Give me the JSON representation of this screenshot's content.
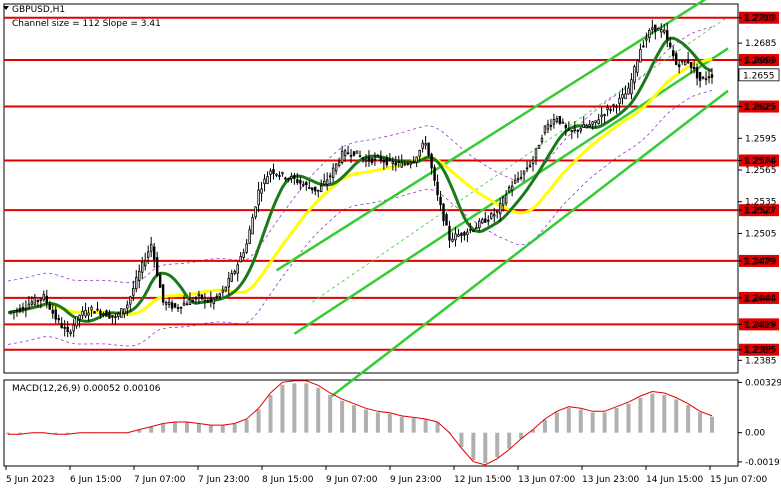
{
  "header": {
    "symbol_label": "GBPUSD,H1",
    "channel_label": "Channel size = 112  Slope = 3.41"
  },
  "colors": {
    "level_line": "#e00000",
    "level_tag_bg": "#e00000",
    "channel": "#33cc33",
    "ma_fast": "#1a7a1a",
    "ma_slow": "#ffff00",
    "envelope": "#9933cc",
    "candle": "#000000",
    "macd_hist": "#b0b0b0",
    "macd_signal": "#e00000"
  },
  "chart_data": {
    "type": "candlestick",
    "price_axis": {
      "ylim": [
        1.2373,
        1.2722
      ],
      "ticks": [
        "1.2709",
        "1.2685",
        "1.2669",
        "1.2655",
        "1.2625",
        "1.2595",
        "1.2574",
        "1.2565",
        "1.2535",
        "1.2527",
        "1.2505",
        "1.2479",
        "1.2444",
        "1.2419",
        "1.2395",
        "1.2385"
      ]
    },
    "levels": [
      {
        "value": 1.2709,
        "label": "1.2709"
      },
      {
        "value": 1.2669,
        "label": "1.2669"
      },
      {
        "value": 1.2625,
        "label": "1.2625"
      },
      {
        "value": 1.2574,
        "label": "1.2574"
      },
      {
        "value": 1.2527,
        "label": "1.2527"
      },
      {
        "value": 1.2479,
        "label": "1.2479"
      },
      {
        "value": 1.2444,
        "label": "1.2444"
      },
      {
        "value": 1.2419,
        "label": "1.2419"
      },
      {
        "value": 1.2395,
        "label": "1.2395"
      }
    ],
    "current_price": {
      "value": 1.2655,
      "label": "1.2655"
    },
    "time_labels": [
      "5 Jun 2023",
      "6 Jun 15:00",
      "7 Jun 07:00",
      "7 Jun 23:00",
      "8 Jun 15:00",
      "9 Jun 07:00",
      "9 Jun 23:00",
      "12 Jun 15:00",
      "13 Jun 07:00",
      "13 Jun 23:00",
      "14 Jun 15:00",
      "15 Jun 07:00"
    ],
    "price_path": [
      1.243,
      1.2434,
      1.244,
      1.2445,
      1.2425,
      1.241,
      1.2428,
      1.2433,
      1.243,
      1.2425,
      1.2438,
      1.2468,
      1.2495,
      1.244,
      1.2435,
      1.244,
      1.2445,
      1.244,
      1.245,
      1.247,
      1.2495,
      1.2545,
      1.2565,
      1.256,
      1.2556,
      1.255,
      1.2545,
      1.256,
      1.258,
      1.2582,
      1.2574,
      1.2576,
      1.2572,
      1.257,
      1.2575,
      1.2592,
      1.254,
      1.25,
      1.2505,
      1.251,
      1.2518,
      1.2525,
      1.2548,
      1.256,
      1.2575,
      1.2605,
      1.2615,
      1.26,
      1.2605,
      1.2608,
      1.262,
      1.2628,
      1.264,
      1.268,
      1.27,
      1.2695,
      1.2665,
      1.2668,
      1.265,
      1.2655
    ],
    "macd": {
      "label": "MACD(12,26,9) 0.00052 0.00106",
      "ylim": [
        -0.00218,
        0.00345
      ],
      "ticks": [
        "0.00329",
        "0.00",
        "-0.00191"
      ],
      "signal_path": [
        -0.0001,
        -0.0001,
        0.0,
        0.0,
        -0.0001,
        -0.0001,
        0.0,
        0.0,
        0.0,
        0.0,
        0.0,
        0.0002,
        0.0004,
        0.0006,
        0.0007,
        0.0007,
        0.0006,
        0.0005,
        0.0005,
        0.0006,
        0.0009,
        0.0016,
        0.0026,
        0.0033,
        0.0034,
        0.0034,
        0.0031,
        0.0026,
        0.0022,
        0.0019,
        0.0016,
        0.0014,
        0.0013,
        0.0011,
        0.001,
        0.0009,
        0.0007,
        0.0,
        -0.001,
        -0.0019,
        -0.0021,
        -0.0017,
        -0.0011,
        -0.0004,
        0.0002,
        0.0009,
        0.0014,
        0.0017,
        0.0016,
        0.0014,
        0.0014,
        0.0017,
        0.002,
        0.0024,
        0.0027,
        0.0026,
        0.0023,
        0.0019,
        0.0014,
        0.0011
      ]
    }
  }
}
